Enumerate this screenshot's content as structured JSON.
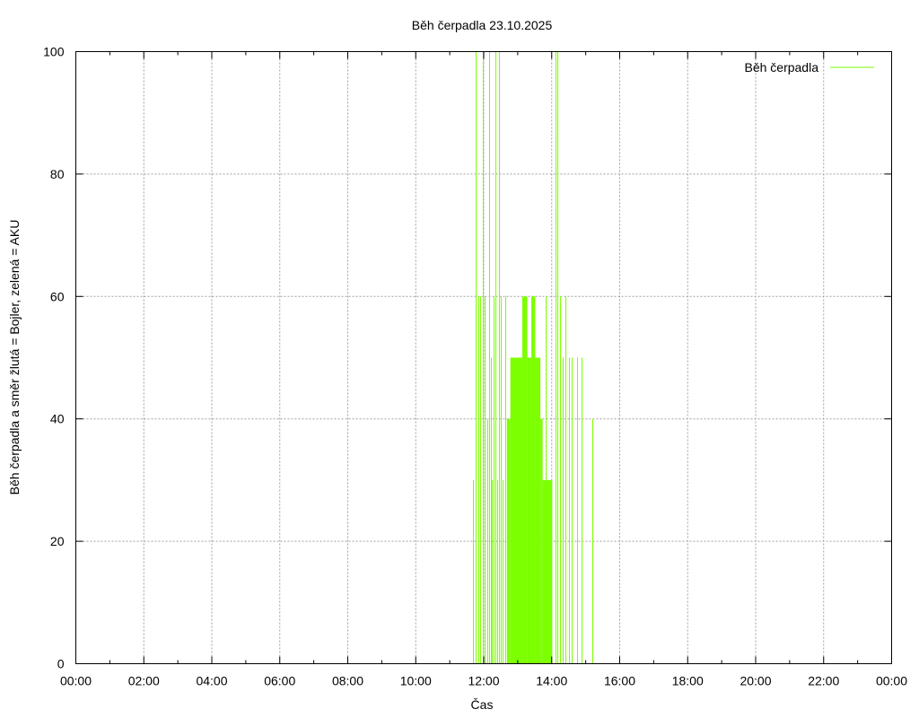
{
  "chart_data": {
    "type": "bar",
    "title": "Běh čerpadla 23.10.2025",
    "xlabel": "Čas",
    "ylabel": "Běh čerpadla a směr žlutá = Bojler, zelená = AKU",
    "xlim": [
      "00:00",
      "24:00"
    ],
    "ylim": [
      0,
      100
    ],
    "x_ticks": [
      "00:00",
      "02:00",
      "04:00",
      "06:00",
      "08:00",
      "10:00",
      "12:00",
      "14:00",
      "16:00",
      "18:00",
      "20:00",
      "22:00",
      "00:00"
    ],
    "y_ticks": [
      "0",
      "20",
      "40",
      "60",
      "80",
      "100"
    ],
    "grid": true,
    "legend_position": "top-right",
    "series": [
      {
        "name": "Běh čerpadla",
        "color": "#7cff00",
        "spikes": [
          {
            "t": "11:41",
            "v": 30
          },
          {
            "t": "11:46",
            "v": 100
          },
          {
            "t": "11:50",
            "v": 60
          },
          {
            "t": "11:53",
            "v": 60
          },
          {
            "t": "11:58",
            "v": 100
          },
          {
            "t": "12:02",
            "v": 60
          },
          {
            "t": "12:06",
            "v": 40
          },
          {
            "t": "12:09",
            "v": 100
          },
          {
            "t": "12:12",
            "v": 50
          },
          {
            "t": "12:15",
            "v": 30
          },
          {
            "t": "12:18",
            "v": 60
          },
          {
            "t": "12:21",
            "v": 100
          },
          {
            "t": "12:24",
            "v": 30
          },
          {
            "t": "12:27",
            "v": 100
          },
          {
            "t": "12:30",
            "v": 60
          },
          {
            "t": "12:33",
            "v": 30
          },
          {
            "t": "12:38",
            "v": 60
          },
          {
            "t": "13:50",
            "v": 60
          },
          {
            "t": "14:06",
            "v": 100
          },
          {
            "t": "14:10",
            "v": 100
          },
          {
            "t": "14:14",
            "v": 60
          },
          {
            "t": "14:20",
            "v": 50
          },
          {
            "t": "14:24",
            "v": 60
          },
          {
            "t": "14:30",
            "v": 50
          },
          {
            "t": "14:36",
            "v": 50
          },
          {
            "t": "14:44",
            "v": 50
          },
          {
            "t": "14:53",
            "v": 50
          },
          {
            "t": "15:12",
            "v": 40
          }
        ],
        "blocks": [
          {
            "start": "12:41",
            "end": "12:47",
            "v": 40
          },
          {
            "start": "12:47",
            "end": "13:08",
            "v": 50
          },
          {
            "start": "13:08",
            "end": "13:17",
            "v": 60
          },
          {
            "start": "13:17",
            "end": "13:24",
            "v": 50
          },
          {
            "start": "13:24",
            "end": "13:31",
            "v": 60
          },
          {
            "start": "13:31",
            "end": "13:40",
            "v": 50
          },
          {
            "start": "13:40",
            "end": "13:44",
            "v": 40
          },
          {
            "start": "13:44",
            "end": "14:01",
            "v": 30
          }
        ]
      }
    ]
  }
}
